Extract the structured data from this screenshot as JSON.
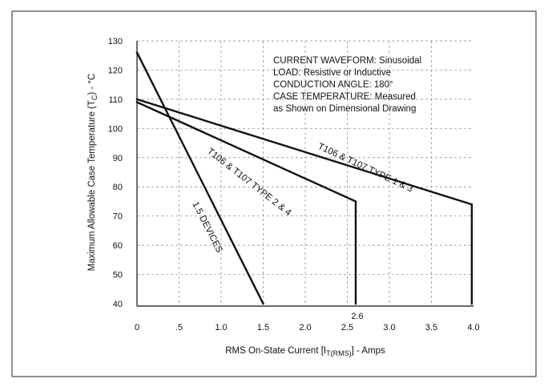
{
  "chart_data": {
    "type": "line",
    "title": "",
    "xlabel_parts": [
      "RMS On-State Current [I",
      "T(RMS)",
      "] - Amps"
    ],
    "ylabel_parts": [
      "Maximum Allowable Case Temperature (T",
      "C",
      ") - °C"
    ],
    "xlim": [
      0,
      4.0
    ],
    "ylim": [
      40,
      130
    ],
    "x_ticks": [
      0,
      0.5,
      1.0,
      1.5,
      2.0,
      2.5,
      3.0,
      3.5,
      4.0
    ],
    "x_tick_labels": [
      "0",
      ".5",
      "1.0",
      "1.5",
      "2.0",
      "2.5",
      "3.0",
      "3.5",
      "4.0"
    ],
    "y_ticks": [
      40,
      50,
      60,
      70,
      80,
      90,
      100,
      110,
      120,
      130
    ],
    "y_tick_labels": [
      "40",
      "50",
      "60",
      "70",
      "80",
      "90",
      "100",
      "110",
      "120",
      "130"
    ],
    "grid": true,
    "legend": "none",
    "annotations": {
      "notes": [
        "CURRENT WAVEFORM: Sinusoidal",
        "LOAD: Resistive or Inductive",
        "CONDUCTION ANGLE: 180°",
        "CASE TEMPERATURE: Measured",
        "as Shown on Dimensional Drawing"
      ],
      "marker_2_6": "2.6"
    },
    "series": [
      {
        "name": "1.5 DEVICES",
        "points": [
          [
            0,
            126
          ],
          [
            1.5,
            40
          ]
        ]
      },
      {
        "name": "T106 & T107 TYPE 2 & 4",
        "points": [
          [
            0,
            109
          ],
          [
            2.6,
            75
          ],
          [
            2.6,
            40
          ]
        ]
      },
      {
        "name": "T106 & T107 TYPE 1 & 3",
        "points": [
          [
            0,
            110
          ],
          [
            3.98,
            74
          ],
          [
            3.98,
            40
          ]
        ]
      }
    ]
  }
}
